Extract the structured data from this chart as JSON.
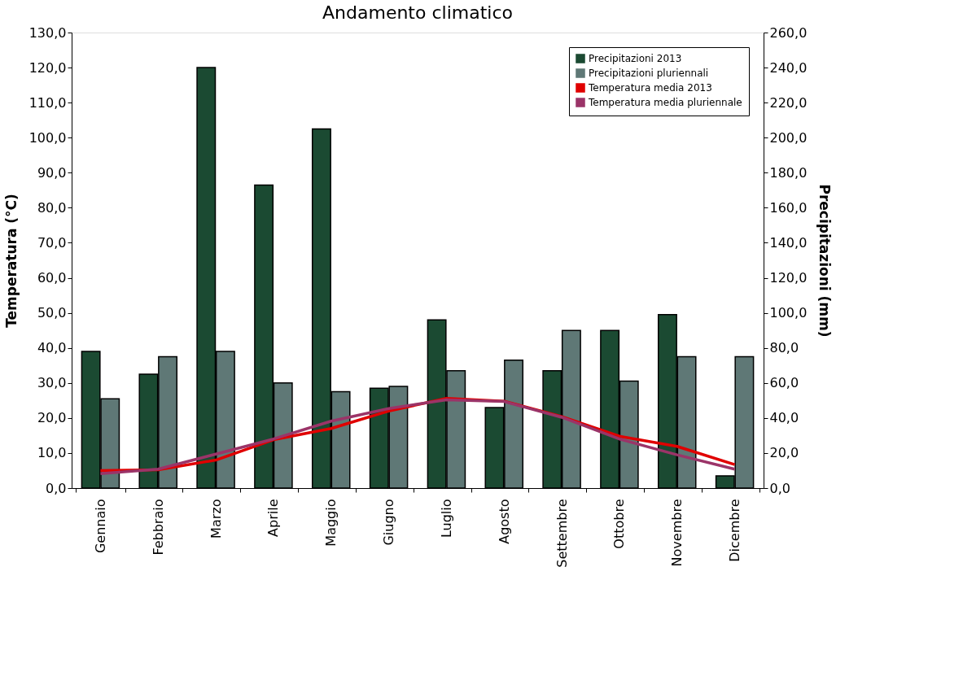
{
  "chart_data": {
    "type": "bar",
    "title": "Andamento climatico",
    "ylabel": "Temperatura (°C)",
    "y2label": "Precipitazioni (mm)",
    "categories": [
      "Gennaio",
      "Febbraio",
      "Marzo",
      "Aprile",
      "Maggio",
      "Giugno",
      "Luglio",
      "Agosto",
      "Settembre",
      "Ottobre",
      "Novembre",
      "Dicembre"
    ],
    "series": [
      {
        "name": "Precipitazioni 2013",
        "axis": "y2",
        "color": "#1b4a32",
        "values": [
          78,
          65,
          240,
          173,
          205,
          57,
          96,
          46,
          67,
          90,
          99,
          7
        ]
      },
      {
        "name": "Precipitazioni pluriennali",
        "axis": "y2",
        "color": "#5f7876",
        "values": [
          51,
          75,
          78,
          60,
          55,
          58,
          67,
          73,
          90,
          61,
          75,
          75
        ]
      },
      {
        "name": "Temperatura media 2013",
        "type": "line",
        "axis": "y",
        "color": "#e00000",
        "values": [
          5.0,
          5.2,
          8.0,
          13.8,
          17.0,
          22.0,
          25.6,
          24.8,
          20.4,
          14.8,
          11.9,
          6.7
        ]
      },
      {
        "name": "Temperatura media pluriennale",
        "type": "line",
        "axis": "y",
        "color": "#9b3468",
        "values": [
          4.1,
          5.4,
          9.7,
          14.0,
          19.1,
          22.7,
          25.2,
          24.7,
          20.2,
          14.0,
          9.5,
          5.4
        ]
      }
    ],
    "ylim": [
      0,
      130
    ],
    "yticks": [
      {
        "value": 0,
        "label": "0,0"
      },
      {
        "value": 10,
        "label": "10,0"
      },
      {
        "value": 20,
        "label": "20,0"
      },
      {
        "value": 30,
        "label": "30,0"
      },
      {
        "value": 40,
        "label": "40,0"
      },
      {
        "value": 50,
        "label": "50,0"
      },
      {
        "value": 60,
        "label": "60,0"
      },
      {
        "value": 70,
        "label": "70,0"
      },
      {
        "value": 80,
        "label": "80,0"
      },
      {
        "value": 90,
        "label": "90,0"
      },
      {
        "value": 100,
        "label": "100,0"
      },
      {
        "value": 110,
        "label": "110,0"
      },
      {
        "value": 120,
        "label": "120,0"
      },
      {
        "value": 130,
        "label": "130,0"
      }
    ],
    "y2lim": [
      0,
      260
    ],
    "y2ticks": [
      {
        "value": 0,
        "label": "0,0"
      },
      {
        "value": 20,
        "label": "20,0"
      },
      {
        "value": 40,
        "label": "40,0"
      },
      {
        "value": 60,
        "label": "60,0"
      },
      {
        "value": 80,
        "label": "80,0"
      },
      {
        "value": 100,
        "label": "100,0"
      },
      {
        "value": 120,
        "label": "120,0"
      },
      {
        "value": 140,
        "label": "140,0"
      },
      {
        "value": 160,
        "label": "160,0"
      },
      {
        "value": 180,
        "label": "180,0"
      },
      {
        "value": 200,
        "label": "200,0"
      },
      {
        "value": 220,
        "label": "220,0"
      },
      {
        "value": 240,
        "label": "240,0"
      },
      {
        "value": 260,
        "label": "260,0"
      }
    ],
    "legend": "top right",
    "grid": false,
    "line_style": "solid",
    "marker": "none"
  }
}
